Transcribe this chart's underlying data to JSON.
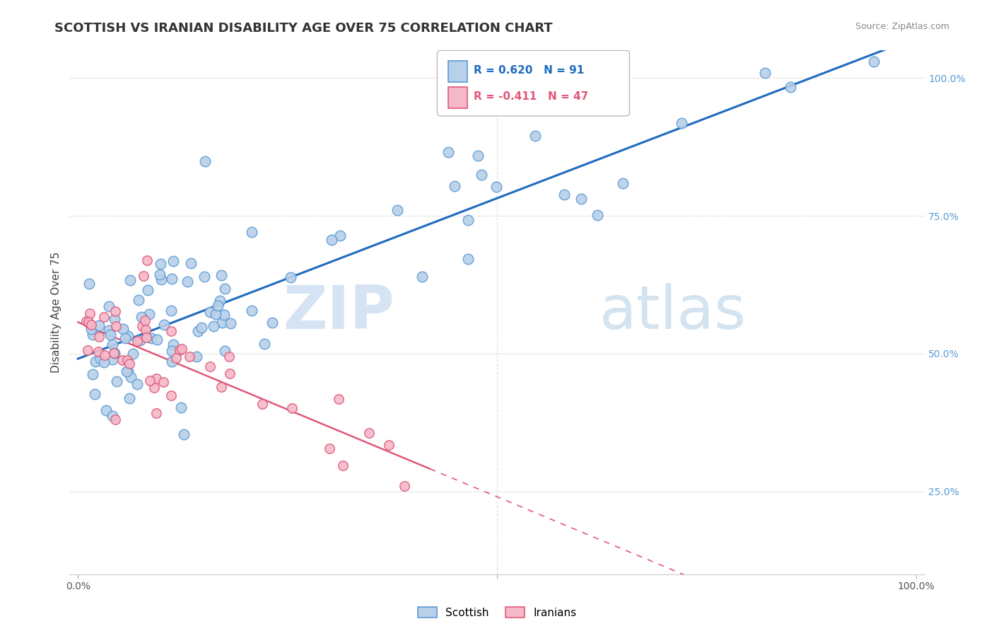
{
  "title": "SCOTTISH VS IRANIAN DISABILITY AGE OVER 75 CORRELATION CHART",
  "source": "Source: ZipAtlas.com",
  "ylabel": "Disability Age Over 75",
  "scottish_R": 0.62,
  "scottish_N": 91,
  "iranian_R": -0.411,
  "iranian_N": 47,
  "scottish_color": "#b8d0e8",
  "scottish_edge": "#5b9bd5",
  "iranian_color": "#f4b8c8",
  "iranian_edge": "#e05878",
  "trend_scottish_color": "#1f6bbf",
  "trend_iranian_color": "#e05878",
  "watermark_zip": "ZIP",
  "watermark_atlas": "atlas",
  "background_color": "#ffffff",
  "grid_color": "#dddddd",
  "tick_color": "#5b9bd5",
  "ylim_low": 0.1,
  "ylim_high": 1.05
}
